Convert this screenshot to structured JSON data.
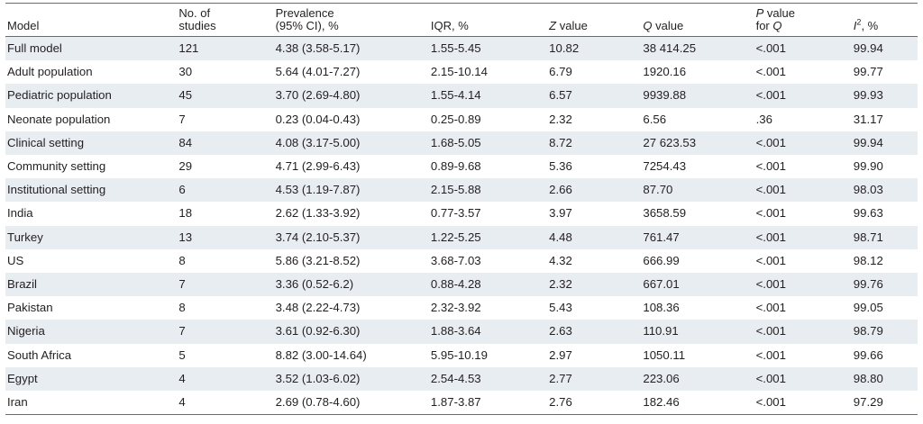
{
  "table": {
    "headers": {
      "model": "Model",
      "studies_line1": "No. of",
      "studies_line2": "studies",
      "prevalence_line1": "Prevalence",
      "prevalence_line2": "(95% CI), %",
      "iqr": "IQR, %",
      "z_italic": "Z",
      "z_rest": " value",
      "q_italic": "Q",
      "q_rest": " value",
      "p_italic": "P",
      "p_rest": " value",
      "p_line2_text": "for ",
      "p_line2_italic": "Q",
      "i2_italic": "I",
      "i2_sup": "2",
      "i2_rest": ", %"
    },
    "rows": [
      [
        "Full model",
        "121",
        "4.38 (3.58-5.17)",
        "1.55-5.45",
        "10.82",
        "38 414.25",
        "<.001",
        "99.94"
      ],
      [
        "Adult population",
        "30",
        "5.64 (4.01-7.27)",
        "2.15-10.14",
        "6.79",
        "1920.16",
        "<.001",
        "99.77"
      ],
      [
        "Pediatric population",
        "45",
        "3.70 (2.69-4.80)",
        "1.55-4.14",
        "6.57",
        "9939.88",
        "<.001",
        "99.93"
      ],
      [
        "Neonate population",
        "7",
        "0.23 (0.04-0.43)",
        "0.25-0.89",
        "2.32",
        "6.56",
        ".36",
        "31.17"
      ],
      [
        "Clinical setting",
        "84",
        "4.08 (3.17-5.00)",
        "1.68-5.05",
        "8.72",
        "27 623.53",
        "<.001",
        "99.94"
      ],
      [
        "Community setting",
        "29",
        "4.71 (2.99-6.43)",
        "0.89-9.68",
        "5.36",
        "7254.43",
        "<.001",
        "99.90"
      ],
      [
        "Institutional setting",
        "6",
        "4.53 (1.19-7.87)",
        "2.15-5.88",
        "2.66",
        "87.70",
        "<.001",
        "98.03"
      ],
      [
        "India",
        "18",
        "2.62 (1.33-3.92)",
        "0.77-3.57",
        "3.97",
        "3658.59",
        "<.001",
        "99.63"
      ],
      [
        "Turkey",
        "13",
        "3.74 (2.10-5.37)",
        "1.22-5.25",
        "4.48",
        "761.47",
        "<.001",
        "98.71"
      ],
      [
        "US",
        "8",
        "5.86 (3.21-8.52)",
        "3.68-7.03",
        "4.32",
        "666.99",
        "<.001",
        "98.12"
      ],
      [
        "Brazil",
        "7",
        "3.36 (0.52-6.2)",
        "0.88-4.28",
        "2.32",
        "667.01",
        "<.001",
        "99.76"
      ],
      [
        "Pakistan",
        "8",
        "3.48 (2.22-4.73)",
        "2.32-3.92",
        "5.43",
        "108.36",
        "<.001",
        "99.05"
      ],
      [
        "Nigeria",
        "7",
        "3.61 (0.92-6.30)",
        "1.88-3.64",
        "2.63",
        "110.91",
        "<.001",
        "98.79"
      ],
      [
        "South Africa",
        "5",
        "8.82 (3.00-14.64)",
        "5.95-10.19",
        "2.97",
        "1050.11",
        "<.001",
        "99.66"
      ],
      [
        "Egypt",
        "4",
        "3.52 (1.03-6.02)",
        "2.54-4.53",
        "2.77",
        "223.06",
        "<.001",
        "98.80"
      ],
      [
        "Iran",
        "4",
        "2.69 (0.78-4.60)",
        "1.87-3.87",
        "2.76",
        "182.46",
        "<.001",
        "97.29"
      ]
    ]
  }
}
